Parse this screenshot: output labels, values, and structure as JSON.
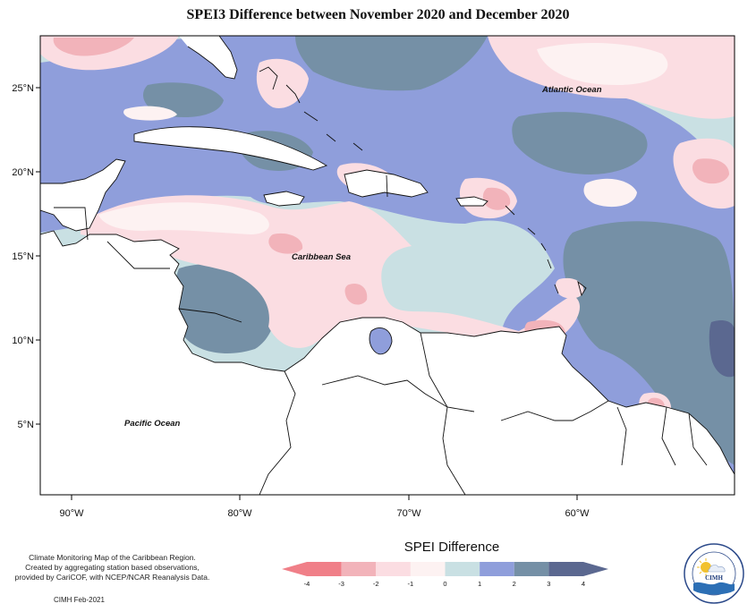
{
  "title": "SPEI3 Difference between November 2020 and December 2020",
  "axes": {
    "lat_labels": [
      "25°N",
      "20°N",
      "15°N",
      "10°N",
      "5°N"
    ],
    "lon_labels": [
      "90°W",
      "80°W",
      "70°W",
      "60°W"
    ]
  },
  "regions": {
    "atlantic": "Atlantic Ocean",
    "caribbean": "Caribbean Sea",
    "pacific": "Pacific Ocean"
  },
  "legend": {
    "title": "SPEI Difference",
    "ticks": [
      "-4",
      "-3",
      "-2",
      "-1",
      "0",
      "1",
      "2",
      "3",
      "4"
    ],
    "colors": [
      "#f07f88",
      "#f2b3ba",
      "#fbdde2",
      "#fdf2f2",
      "#c9e0e3",
      "#8f9edb",
      "#7590a6",
      "#5b6890"
    ]
  },
  "footnote": {
    "line1": "Climate Monitoring Map of the Caribbean Region.",
    "line2": "Created by aggregating station based observations,",
    "line3": "provided by CariCOF, with NCEP/NCAR Reanalysis Data.",
    "credit": "CIMH Feb-2021"
  },
  "logo": {
    "text": "CIMH"
  },
  "chart_data": {
    "type": "heatmap",
    "title": "SPEI3 Difference between November 2020 and December 2020",
    "x_range": [
      "92°W",
      "52°W"
    ],
    "y_range": [
      "1°N",
      "28°N"
    ],
    "xticks": [
      "90°W",
      "80°W",
      "70°W",
      "60°W"
    ],
    "yticks": [
      "25°N",
      "20°N",
      "15°N",
      "10°N",
      "5°N"
    ],
    "colorbar": {
      "label": "SPEI Difference",
      "bounds": [
        -4,
        -3,
        -2,
        -1,
        0,
        1,
        2,
        3,
        4
      ],
      "colors": [
        "#f07f88",
        "#f2b3ba",
        "#fbdde2",
        "#fdf2f2",
        "#c9e0e3",
        "#8f9edb",
        "#7590a6",
        "#5b6890"
      ],
      "extend": "both"
    }
  }
}
